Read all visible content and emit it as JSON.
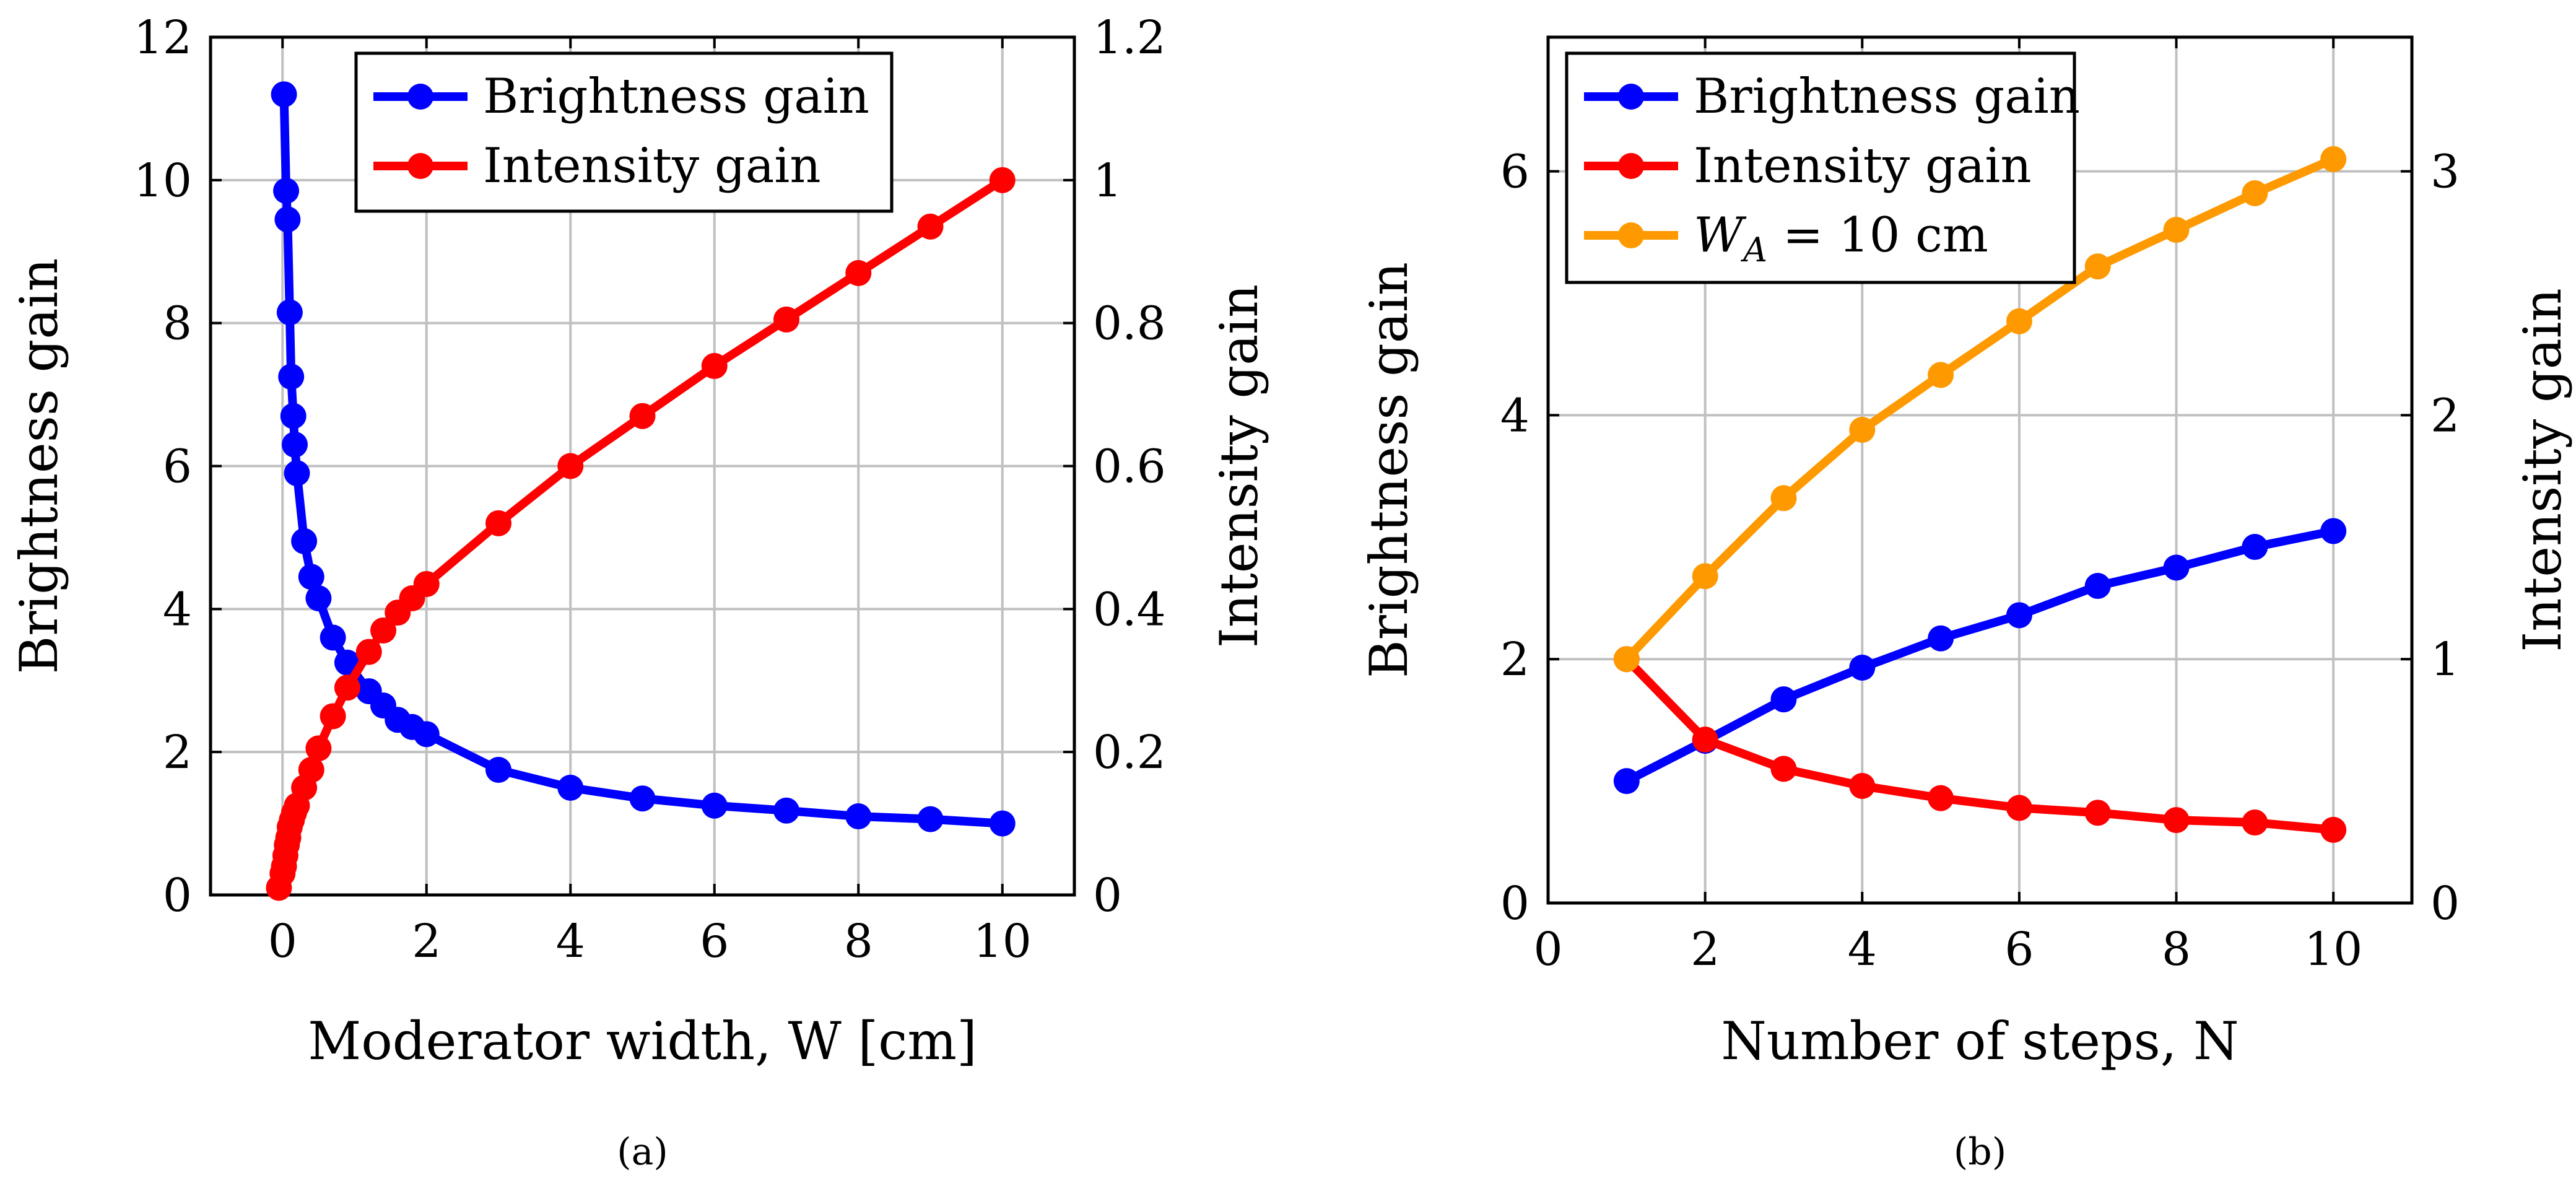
{
  "chart_data": [
    {
      "type": "line",
      "caption": "(a)",
      "xlabel": "Moderator width, W [cm]",
      "ylabel": "Brightness gain",
      "y2label": "Intensity gain",
      "xlim": [
        -1,
        11
      ],
      "ylim": [
        0,
        12
      ],
      "y2lim": [
        0,
        1.2
      ],
      "xticks": [
        0,
        2,
        4,
        6,
        8,
        10
      ],
      "yticks": [
        0,
        2,
        4,
        6,
        8,
        10,
        12
      ],
      "y2ticks": [
        0,
        0.2,
        0.4,
        0.6,
        0.8,
        1,
        1.2
      ],
      "xtick_labels": [
        "0",
        "2",
        "4",
        "6",
        "8",
        "10"
      ],
      "ytick_labels": [
        "0",
        "2",
        "4",
        "6",
        "8",
        "10",
        "12"
      ],
      "y2tick_labels": [
        "0",
        "0.2",
        "0.4",
        "0.6",
        "0.8",
        "1",
        "1.2"
      ],
      "grid": true,
      "legend_position": "top-center",
      "series": [
        {
          "name": "Brightness gain",
          "color": "#0000ff",
          "axis": "left",
          "x": [
            0.02,
            0.05,
            0.07,
            0.1,
            0.12,
            0.15,
            0.17,
            0.2,
            0.3,
            0.4,
            0.5,
            0.7,
            0.9,
            1.2,
            1.4,
            1.6,
            1.8,
            2,
            3,
            4,
            5,
            6,
            7,
            8,
            9,
            10
          ],
          "y": [
            11.2,
            9.85,
            9.45,
            8.15,
            7.25,
            6.7,
            6.3,
            5.9,
            4.95,
            4.45,
            4.15,
            3.6,
            3.25,
            2.85,
            2.65,
            2.45,
            2.35,
            2.25,
            1.75,
            1.5,
            1.35,
            1.25,
            1.18,
            1.1,
            1.06,
            1.0
          ]
        },
        {
          "name": "Intensity gain",
          "color": "#ff0000",
          "axis": "right",
          "x": [
            -0.05,
            0,
            0.02,
            0.04,
            0.06,
            0.08,
            0.1,
            0.13,
            0.16,
            0.2,
            0.3,
            0.4,
            0.5,
            0.7,
            0.9,
            1.2,
            1.4,
            1.6,
            1.8,
            2,
            3,
            4,
            5,
            6,
            7,
            8,
            9,
            10
          ],
          "y": [
            0.01,
            0.03,
            0.04,
            0.055,
            0.07,
            0.08,
            0.095,
            0.105,
            0.115,
            0.125,
            0.15,
            0.175,
            0.205,
            0.25,
            0.29,
            0.34,
            0.37,
            0.395,
            0.415,
            0.435,
            0.52,
            0.6,
            0.67,
            0.74,
            0.805,
            0.87,
            0.935,
            1.0
          ]
        }
      ]
    },
    {
      "type": "line",
      "caption": "(b)",
      "xlabel": "Number of steps, N",
      "ylabel": "Brightness gain",
      "y2label": "Intensity gain",
      "xlim": [
        0,
        11
      ],
      "ylim": [
        0,
        7.1
      ],
      "y2lim": [
        0,
        3.55
      ],
      "xticks": [
        0,
        2,
        4,
        6,
        8,
        10
      ],
      "yticks": [
        0,
        2,
        4,
        6
      ],
      "y2ticks": [
        0,
        1,
        2,
        3
      ],
      "xtick_labels": [
        "0",
        "2",
        "4",
        "6",
        "8",
        "10"
      ],
      "ytick_labels": [
        "0",
        "2",
        "4",
        "6"
      ],
      "y2tick_labels": [
        "0",
        "1",
        "2",
        "3"
      ],
      "grid": true,
      "legend_position": "top-left",
      "series": [
        {
          "name": "Brightness gain",
          "color": "#0000ff",
          "axis": "left",
          "x": [
            1,
            2,
            3,
            4,
            5,
            6,
            7,
            8,
            9,
            10
          ],
          "y": [
            1.0,
            1.33,
            1.67,
            1.93,
            2.17,
            2.36,
            2.6,
            2.75,
            2.92,
            3.05
          ]
        },
        {
          "name": "Intensity gain",
          "color": "#ff0000",
          "axis": "right",
          "x": [
            1,
            2,
            3,
            4,
            5,
            6,
            7,
            8,
            9,
            10
          ],
          "y": [
            1.0,
            0.67,
            0.55,
            0.48,
            0.43,
            0.39,
            0.37,
            0.34,
            0.33,
            0.3
          ]
        },
        {
          "name": "W_A = 10 cm",
          "legend_main": "W",
          "legend_sub": "A",
          "legend_rest": " = 10 cm",
          "color": "#ff9900",
          "axis": "left",
          "x": [
            1,
            2,
            3,
            4,
            5,
            6,
            7,
            8,
            9,
            10
          ],
          "y": [
            2.0,
            2.68,
            3.32,
            3.88,
            4.33,
            4.77,
            5.22,
            5.52,
            5.82,
            6.1
          ]
        }
      ]
    }
  ]
}
